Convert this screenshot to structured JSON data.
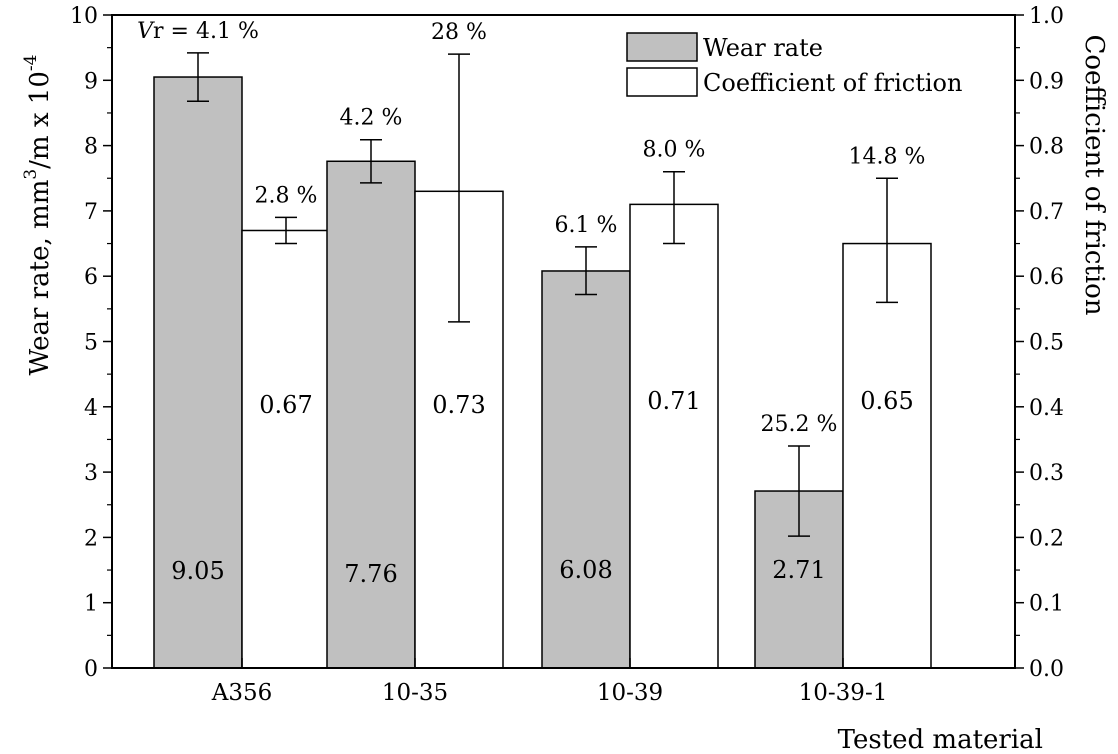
{
  "chart_data": {
    "type": "bar",
    "categories": [
      "A356",
      "10-35",
      "10-39",
      "10-39-1"
    ],
    "xlabel": "Tested material",
    "ylabel_left": {
      "prefix": "Wear rate, mm",
      "sup1": "3",
      "middle": "/m x 10",
      "sup2": "-4"
    },
    "ylabel_right": "Coefficient of friction",
    "ylim_left": [
      0,
      10
    ],
    "ylim_right": [
      0.0,
      1.0
    ],
    "yticks_left": [
      "0",
      "1",
      "2",
      "3",
      "4",
      "5",
      "6",
      "7",
      "8",
      "9",
      "10"
    ],
    "yticks_right": [
      "0.0",
      "0.1",
      "0.2",
      "0.3",
      "0.4",
      "0.5",
      "0.6",
      "0.7",
      "0.8",
      "0.9",
      "1.0"
    ],
    "legend_position": "top-right",
    "series": [
      {
        "name": "Wear rate",
        "axis": "left",
        "color": "#c0c0c0",
        "values": [
          9.05,
          7.76,
          6.08,
          2.71
        ],
        "value_labels": [
          "9.05",
          "7.76",
          "6.08",
          "2.71"
        ],
        "error_low": [
          8.68,
          7.43,
          5.72,
          2.02
        ],
        "error_high": [
          9.42,
          8.09,
          6.45,
          3.4
        ],
        "variation_labels": [
          "= 4.1 %",
          "4.2 %",
          "6.1 %",
          "25.2 %"
        ]
      },
      {
        "name": "Coefficient of friction",
        "axis": "right",
        "color": "#ffffff",
        "values": [
          0.67,
          0.73,
          0.71,
          0.65
        ],
        "value_labels": [
          "0.67",
          "0.73",
          "0.71",
          "0.65"
        ],
        "error_low": [
          0.65,
          0.53,
          0.65,
          0.56
        ],
        "error_high": [
          0.69,
          0.94,
          0.76,
          0.75
        ],
        "variation_labels": [
          "2.8 %",
          "28 %",
          "8.0 %",
          "14.8 %"
        ]
      }
    ],
    "annotation_prefix": "V",
    "annotation_prefix_sub": "r"
  }
}
